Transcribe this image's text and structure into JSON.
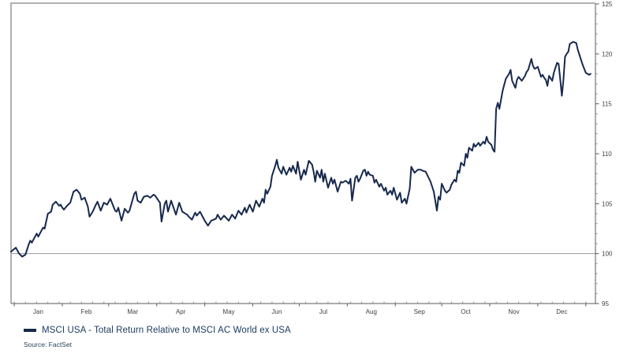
{
  "chart": {
    "legend_label": "MSCI USA - Total Return Relative to MSCI AC World ex USA",
    "source": "Source: FactSet",
    "colors": {
      "line": "#16294d",
      "legend_swatch": "#16294d",
      "legend_text": "#1d3a60",
      "source_text": "#27415f",
      "frame": "#b0b0b0",
      "axis": "#5a5a5a",
      "minor_tick": "#8a8a8a",
      "reference_line": "#999999",
      "tick_label": "#404040",
      "background": "#ffffff"
    }
  },
  "chart_data": {
    "type": "line",
    "title": "",
    "xlabel": "",
    "ylabel": "",
    "legend_position": "bottom-left",
    "grid": "off",
    "reference_line": 100,
    "y_axis": {
      "side": "right",
      "min": 95,
      "max": 125,
      "major_ticks": [
        95,
        100,
        105,
        110,
        115,
        120,
        125
      ],
      "minor_step": 1
    },
    "x_axis": {
      "unit": "day-of-year",
      "range": [
        0,
        365
      ],
      "month_labels": [
        "Jan",
        "Feb",
        "Mar",
        "Apr",
        "May",
        "Jun",
        "Jul",
        "Aug",
        "Sep",
        "Oct",
        "Nov",
        "Dec"
      ],
      "month_label_days": [
        17,
        47,
        76,
        106,
        136,
        166,
        195,
        225,
        255,
        284,
        314,
        344
      ],
      "month_boundary_days": [
        2,
        32,
        61,
        91,
        121,
        151,
        180,
        210,
        240,
        269,
        299,
        329,
        359
      ],
      "minor_tick_step_days": 7
    },
    "series": [
      {
        "name": "MSCI USA - Total Return Relative to MSCI AC World ex USA",
        "color": "#16294d",
        "points": [
          [
            0,
            100.2
          ],
          [
            3,
            100.6
          ],
          [
            5,
            100.0
          ],
          [
            7,
            99.7
          ],
          [
            9,
            99.9
          ],
          [
            11,
            100.9
          ],
          [
            12,
            101.3
          ],
          [
            13,
            101.1
          ],
          [
            16,
            102.0
          ],
          [
            17,
            101.7
          ],
          [
            20,
            102.6
          ],
          [
            21,
            102.5
          ],
          [
            23,
            104.0
          ],
          [
            25,
            104.2
          ],
          [
            26,
            104.9
          ],
          [
            28,
            105.2
          ],
          [
            30,
            104.8
          ],
          [
            31,
            104.9
          ],
          [
            32,
            104.6
          ],
          [
            33,
            104.4
          ],
          [
            35,
            104.8
          ],
          [
            37,
            105.1
          ],
          [
            39,
            106.2
          ],
          [
            41,
            106.4
          ],
          [
            43,
            106.0
          ],
          [
            44,
            105.4
          ],
          [
            46,
            105.6
          ],
          [
            48,
            104.7
          ],
          [
            49,
            103.7
          ],
          [
            51,
            104.2
          ],
          [
            53,
            104.9
          ],
          [
            54,
            105.2
          ],
          [
            56,
            104.3
          ],
          [
            58,
            105.1
          ],
          [
            60,
            104.9
          ],
          [
            62,
            105.5
          ],
          [
            65,
            104.3
          ],
          [
            66,
            104.2
          ],
          [
            67,
            104.6
          ],
          [
            69,
            103.3
          ],
          [
            71,
            104.5
          ],
          [
            73,
            104.1
          ],
          [
            74,
            104.3
          ],
          [
            77,
            106.0
          ],
          [
            78,
            106.2
          ],
          [
            79,
            105.3
          ],
          [
            81,
            105.1
          ],
          [
            83,
            105.7
          ],
          [
            85,
            105.8
          ],
          [
            87,
            105.6
          ],
          [
            89,
            105.9
          ],
          [
            90,
            105.8
          ],
          [
            93,
            105.1
          ],
          [
            94,
            103.2
          ],
          [
            96,
            105.0
          ],
          [
            97,
            105.3
          ],
          [
            98,
            104.2
          ],
          [
            100,
            105.3
          ],
          [
            103,
            103.9
          ],
          [
            105,
            105.1
          ],
          [
            107,
            104.2
          ],
          [
            110,
            103.9
          ],
          [
            111,
            103.7
          ],
          [
            113,
            103.4
          ],
          [
            115,
            104.1
          ],
          [
            116,
            103.8
          ],
          [
            118,
            104.2
          ],
          [
            120,
            103.6
          ],
          [
            121,
            103.3
          ],
          [
            123,
            102.8
          ],
          [
            125,
            103.3
          ],
          [
            128,
            103.5
          ],
          [
            129,
            103.9
          ],
          [
            131,
            103.4
          ],
          [
            133,
            103.8
          ],
          [
            136,
            103.3
          ],
          [
            138,
            103.9
          ],
          [
            140,
            103.5
          ],
          [
            142,
            104.3
          ],
          [
            144,
            103.9
          ],
          [
            146,
            104.6
          ],
          [
            147,
            104.1
          ],
          [
            149,
            104.9
          ],
          [
            151,
            104.2
          ],
          [
            153,
            105.3
          ],
          [
            155,
            104.7
          ],
          [
            157,
            105.5
          ],
          [
            158,
            105.1
          ],
          [
            159,
            106.4
          ],
          [
            160,
            106.0
          ],
          [
            162,
            106.7
          ],
          [
            163,
            107.8
          ],
          [
            165,
            108.8
          ],
          [
            166,
            109.4
          ],
          [
            167,
            108.6
          ],
          [
            169,
            108.0
          ],
          [
            170,
            108.7
          ],
          [
            172,
            107.9
          ],
          [
            174,
            108.6
          ],
          [
            175,
            108.2
          ],
          [
            176,
            108.8
          ],
          [
            178,
            108.0
          ],
          [
            179,
            109.2
          ],
          [
            181,
            107.4
          ],
          [
            183,
            108.4
          ],
          [
            184,
            107.9
          ],
          [
            186,
            109.3
          ],
          [
            188,
            108.9
          ],
          [
            189,
            108.2
          ],
          [
            190,
            107.2
          ],
          [
            191,
            108.3
          ],
          [
            193,
            107.6
          ],
          [
            194,
            108.4
          ],
          [
            195,
            107.2
          ],
          [
            196,
            108.0
          ],
          [
            198,
            106.6
          ],
          [
            200,
            107.6
          ],
          [
            201,
            107.0
          ],
          [
            202,
            107.4
          ],
          [
            204,
            106.2
          ],
          [
            206,
            107.2
          ],
          [
            207,
            107.1
          ],
          [
            209,
            107.3
          ],
          [
            211,
            107.0
          ],
          [
            212,
            107.5
          ],
          [
            213,
            105.3
          ],
          [
            215,
            107.6
          ],
          [
            216,
            107.8
          ],
          [
            217,
            107.2
          ],
          [
            218,
            107.5
          ],
          [
            220,
            108.3
          ],
          [
            221,
            108.4
          ],
          [
            222,
            107.8
          ],
          [
            223,
            108.2
          ],
          [
            224,
            107.9
          ],
          [
            226,
            107.8
          ],
          [
            227,
            107.1
          ],
          [
            228,
            107.4
          ],
          [
            230,
            106.7
          ],
          [
            231,
            107.0
          ],
          [
            233,
            106.3
          ],
          [
            234,
            106.6
          ],
          [
            235,
            105.9
          ],
          [
            237,
            106.3
          ],
          [
            238,
            105.9
          ],
          [
            239,
            106.6
          ],
          [
            241,
            105.4
          ],
          [
            243,
            106.1
          ],
          [
            244,
            105.1
          ],
          [
            246,
            105.5
          ],
          [
            247,
            105.0
          ],
          [
            249,
            106.5
          ],
          [
            250,
            108.7
          ],
          [
            252,
            108.1
          ],
          [
            254,
            108.4
          ],
          [
            256,
            108.4
          ],
          [
            257,
            108.3
          ],
          [
            259,
            108.2
          ],
          [
            262,
            107.2
          ],
          [
            264,
            106.2
          ],
          [
            266,
            104.3
          ],
          [
            267,
            105.7
          ],
          [
            268,
            105.4
          ],
          [
            269,
            107.0
          ],
          [
            271,
            106.3
          ],
          [
            272,
            106.1
          ],
          [
            274,
            106.4
          ],
          [
            275,
            106.9
          ],
          [
            277,
            107.4
          ],
          [
            278,
            107.2
          ],
          [
            279,
            108.3
          ],
          [
            280,
            108.1
          ],
          [
            281,
            109.1
          ],
          [
            283,
            108.8
          ],
          [
            284,
            110.0
          ],
          [
            285,
            109.6
          ],
          [
            286,
            110.6
          ],
          [
            288,
            110.3
          ],
          [
            289,
            111.0
          ],
          [
            290,
            110.7
          ],
          [
            292,
            111.1
          ],
          [
            293,
            110.8
          ],
          [
            295,
            111.2
          ],
          [
            296,
            111.0
          ],
          [
            297,
            111.7
          ],
          [
            298,
            111.2
          ],
          [
            300,
            110.9
          ],
          [
            301,
            110.4
          ],
          [
            302,
            110.2
          ],
          [
            303,
            114.5
          ],
          [
            304,
            115.1
          ],
          [
            305,
            114.5
          ],
          [
            307,
            116.3
          ],
          [
            309,
            117.5
          ],
          [
            311,
            118.0
          ],
          [
            312,
            118.4
          ],
          [
            313,
            117.3
          ],
          [
            315,
            116.6
          ],
          [
            316,
            117.4
          ],
          [
            317,
            117.7
          ],
          [
            319,
            117.3
          ],
          [
            321,
            117.8
          ],
          [
            322,
            118.2
          ],
          [
            323,
            118.4
          ],
          [
            325,
            119.5
          ],
          [
            326,
            118.8
          ],
          [
            327,
            118.5
          ],
          [
            328,
            118.6
          ],
          [
            329,
            118.7
          ],
          [
            331,
            117.7
          ],
          [
            332,
            117.9
          ],
          [
            333,
            117.6
          ],
          [
            334,
            117.4
          ],
          [
            335,
            116.8
          ],
          [
            336,
            117.8
          ],
          [
            338,
            117.3
          ],
          [
            339,
            118.1
          ],
          [
            341,
            119.1
          ],
          [
            342,
            119.0
          ],
          [
            343,
            117.5
          ],
          [
            344,
            115.8
          ],
          [
            345,
            117.4
          ],
          [
            346,
            119.7
          ],
          [
            347,
            120.0
          ],
          [
            348,
            120.2
          ],
          [
            349,
            121.0
          ],
          [
            351,
            121.2
          ],
          [
            353,
            121.1
          ],
          [
            354,
            120.4
          ],
          [
            355,
            119.9
          ],
          [
            357,
            118.9
          ],
          [
            358,
            118.5
          ],
          [
            359,
            118.1
          ],
          [
            361,
            117.9
          ],
          [
            362,
            118.0
          ]
        ]
      }
    ]
  }
}
